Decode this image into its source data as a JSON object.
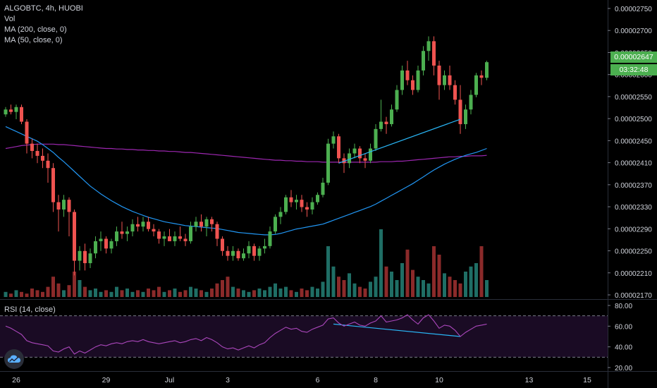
{
  "header": {
    "symbol_line": "ALGOBTC, 4h, HUOBI",
    "vol_label": "Vol",
    "ma200_label": "MA (200, close, 0)",
    "ma50_label": "MA (50, close, 0)"
  },
  "rsi_label": "RSI (14, close)",
  "current_price": "0.00002647",
  "countdown": "03:32:48",
  "colors": {
    "up": "#26a69a",
    "up_bright": "#4caf50",
    "down": "#ef5350",
    "vol_up": "#1f6e65",
    "vol_down": "#8b2a2a",
    "ma50": "#2196f3",
    "ma200": "#9c27b0",
    "rsi_line": "#ab47bc",
    "trendline": "#29b6f6"
  },
  "logo_icon": "tradingview-cloud-icon",
  "chart_data": {
    "type": "candlestick",
    "symbol": "ALGOBTC",
    "interval": "4h",
    "exchange": "HUOBI",
    "x_tick_labels": [
      "26",
      "29",
      "Jul",
      "3",
      "6",
      "8",
      "10",
      "13",
      "15"
    ],
    "price_axis": {
      "tick_labels": [
        "0.00002750",
        "0.00002700",
        "0.00002650",
        "0.00002600",
        "0.00002550",
        "0.00002500",
        "0.00002450",
        "0.00002410",
        "0.00002370",
        "0.00002330",
        "0.00002290",
        "0.00002250",
        "0.00002210",
        "0.00002170"
      ],
      "range": [
        2.17e-05,
        2.76e-05
      ]
    },
    "rsi_axis": {
      "tick_labels": [
        "80.00",
        "60.00",
        "40.00",
        "20.00"
      ],
      "range": [
        20,
        80
      ],
      "levels": [
        70,
        30
      ]
    },
    "candles": [
      [
        2540,
        2555,
        2535,
        2550
      ],
      [
        2550,
        2560,
        2540,
        2545
      ],
      [
        2545,
        2560,
        2530,
        2555
      ],
      [
        2555,
        2560,
        2520,
        2525
      ],
      [
        2525,
        2530,
        2460,
        2480
      ],
      [
        2480,
        2490,
        2450,
        2465
      ],
      [
        2465,
        2480,
        2440,
        2455
      ],
      [
        2455,
        2470,
        2430,
        2445
      ],
      [
        2445,
        2460,
        2400,
        2430
      ],
      [
        2430,
        2440,
        2340,
        2360
      ],
      [
        2360,
        2375,
        2300,
        2345
      ],
      [
        2345,
        2375,
        2330,
        2365
      ],
      [
        2365,
        2370,
        2290,
        2340
      ],
      [
        2340,
        2345,
        2210,
        2240
      ],
      [
        2240,
        2270,
        2220,
        2260
      ],
      [
        2260,
        2275,
        2220,
        2235
      ],
      [
        2235,
        2265,
        2225,
        2255
      ],
      [
        2255,
        2290,
        2245,
        2280
      ],
      [
        2280,
        2300,
        2260,
        2285
      ],
      [
        2285,
        2290,
        2255,
        2265
      ],
      [
        2265,
        2285,
        2255,
        2280
      ],
      [
        2280,
        2310,
        2270,
        2300
      ],
      [
        2300,
        2320,
        2285,
        2295
      ],
      [
        2295,
        2310,
        2280,
        2300
      ],
      [
        2300,
        2325,
        2290,
        2315
      ],
      [
        2315,
        2330,
        2300,
        2310
      ],
      [
        2310,
        2330,
        2300,
        2320
      ],
      [
        2320,
        2330,
        2300,
        2305
      ],
      [
        2305,
        2315,
        2290,
        2300
      ],
      [
        2300,
        2305,
        2275,
        2285
      ],
      [
        2285,
        2300,
        2270,
        2290
      ],
      [
        2290,
        2305,
        2280,
        2280
      ],
      [
        2280,
        2300,
        2270,
        2290
      ],
      [
        2290,
        2310,
        2280,
        2285
      ],
      [
        2285,
        2295,
        2270,
        2280
      ],
      [
        2280,
        2320,
        2275,
        2310
      ],
      [
        2310,
        2330,
        2300,
        2320
      ],
      [
        2320,
        2335,
        2300,
        2310
      ],
      [
        2310,
        2330,
        2290,
        2325
      ],
      [
        2325,
        2330,
        2300,
        2315
      ],
      [
        2315,
        2320,
        2270,
        2285
      ],
      [
        2285,
        2290,
        2250,
        2260
      ],
      [
        2260,
        2270,
        2240,
        2250
      ],
      [
        2250,
        2270,
        2240,
        2260
      ],
      [
        2260,
        2265,
        2240,
        2245
      ],
      [
        2245,
        2265,
        2240,
        2255
      ],
      [
        2255,
        2280,
        2245,
        2270
      ],
      [
        2270,
        2275,
        2240,
        2250
      ],
      [
        2250,
        2270,
        2240,
        2265
      ],
      [
        2265,
        2285,
        2255,
        2270
      ],
      [
        2270,
        2310,
        2265,
        2300
      ],
      [
        2300,
        2335,
        2295,
        2330
      ],
      [
        2330,
        2350,
        2315,
        2340
      ],
      [
        2340,
        2375,
        2335,
        2370
      ],
      [
        2370,
        2385,
        2350,
        2360
      ],
      [
        2360,
        2375,
        2345,
        2365
      ],
      [
        2365,
        2375,
        2340,
        2350
      ],
      [
        2350,
        2360,
        2330,
        2345
      ],
      [
        2345,
        2370,
        2335,
        2360
      ],
      [
        2360,
        2380,
        2355,
        2375
      ],
      [
        2375,
        2410,
        2370,
        2400
      ],
      [
        2400,
        2490,
        2395,
        2480
      ],
      [
        2480,
        2505,
        2470,
        2495
      ],
      [
        2495,
        2500,
        2440,
        2450
      ],
      [
        2450,
        2460,
        2420,
        2440
      ],
      [
        2440,
        2470,
        2430,
        2460
      ],
      [
        2460,
        2480,
        2450,
        2470
      ],
      [
        2470,
        2475,
        2440,
        2450
      ],
      [
        2450,
        2460,
        2430,
        2445
      ],
      [
        2445,
        2480,
        2440,
        2470
      ],
      [
        2470,
        2520,
        2465,
        2510
      ],
      [
        2510,
        2570,
        2505,
        2525
      ],
      [
        2525,
        2535,
        2500,
        2520
      ],
      [
        2520,
        2560,
        2515,
        2550
      ],
      [
        2550,
        2600,
        2545,
        2590
      ],
      [
        2590,
        2640,
        2580,
        2630
      ],
      [
        2630,
        2650,
        2600,
        2610
      ],
      [
        2610,
        2620,
        2580,
        2590
      ],
      [
        2590,
        2640,
        2585,
        2630
      ],
      [
        2630,
        2680,
        2620,
        2670
      ],
      [
        2670,
        2700,
        2650,
        2690
      ],
      [
        2690,
        2700,
        2620,
        2640
      ],
      [
        2640,
        2650,
        2570,
        2600
      ],
      [
        2600,
        2630,
        2590,
        2620
      ],
      [
        2620,
        2640,
        2590,
        2600
      ],
      [
        2600,
        2610,
        2560,
        2570
      ],
      [
        2570,
        2600,
        2500,
        2520
      ],
      [
        2520,
        2560,
        2510,
        2550
      ],
      [
        2550,
        2590,
        2540,
        2580
      ],
      [
        2580,
        2625,
        2575,
        2620
      ],
      [
        2620,
        2630,
        2600,
        2615
      ],
      [
        2615,
        2650,
        2610,
        2647
      ]
    ],
    "volume": [
      3,
      2,
      4,
      3,
      2,
      5,
      4,
      3,
      6,
      12,
      8,
      4,
      7,
      15,
      10,
      6,
      4,
      5,
      3,
      4,
      3,
      6,
      4,
      5,
      3,
      4,
      3,
      5,
      4,
      6,
      3,
      4,
      5,
      3,
      4,
      6,
      5,
      4,
      3,
      5,
      8,
      10,
      12,
      6,
      5,
      4,
      3,
      4,
      5,
      4,
      6,
      8,
      5,
      6,
      4,
      3,
      5,
      4,
      6,
      5,
      9,
      30,
      18,
      12,
      10,
      14,
      8,
      6,
      5,
      9,
      12,
      40,
      18,
      15,
      10,
      20,
      28,
      16,
      12,
      10,
      8,
      30,
      25,
      14,
      12,
      10,
      8,
      15,
      18,
      20,
      30,
      10
    ],
    "rsi": [
      60,
      58,
      55,
      52,
      46,
      44,
      43,
      42,
      41,
      36,
      35,
      38,
      40,
      33,
      36,
      34,
      37,
      40,
      42,
      41,
      43,
      44,
      43,
      45,
      46,
      45,
      47,
      45,
      44,
      43,
      44,
      45,
      46,
      44,
      45,
      47,
      48,
      46,
      49,
      47,
      44,
      40,
      38,
      39,
      37,
      39,
      41,
      39,
      42,
      44,
      49,
      53,
      56,
      59,
      57,
      58,
      55,
      54,
      57,
      59,
      61,
      67,
      68,
      63,
      60,
      62,
      64,
      61,
      60,
      63,
      65,
      70,
      64,
      65,
      66,
      68,
      71,
      66,
      62,
      68,
      71,
      65,
      58,
      61,
      60,
      56,
      50,
      54,
      57,
      60,
      61,
      62
    ],
    "ma50": [
      2515,
      2510,
      2505,
      2500,
      2495,
      2490,
      2485,
      2478,
      2470,
      2462,
      2452,
      2443,
      2433,
      2423,
      2413,
      2403,
      2393,
      2385,
      2377,
      2370,
      2363,
      2357,
      2351,
      2346,
      2341,
      2337,
      2333,
      2329,
      2326,
      2323,
      2320,
      2318,
      2316,
      2314,
      2312,
      2311,
      2310,
      2309,
      2308,
      2307,
      2306,
      2304,
      2302,
      2300,
      2298,
      2297,
      2296,
      2295,
      2294,
      2293,
      2293,
      2294,
      2296,
      2299,
      2302,
      2305,
      2307,
      2309,
      2311,
      2313,
      2315,
      2319,
      2323,
      2327,
      2331,
      2335,
      2339,
      2343,
      2347,
      2351,
      2356,
      2362,
      2368,
      2374,
      2380,
      2386,
      2392,
      2398,
      2405,
      2412,
      2419,
      2426,
      2432,
      2438,
      2443,
      2448,
      2452,
      2456,
      2459,
      2462,
      2466,
      2470
    ],
    "ma200": [
      2470,
      2472,
      2474,
      2476,
      2477,
      2478,
      2479,
      2479,
      2479,
      2479,
      2478,
      2478,
      2477,
      2476,
      2475,
      2474,
      2473,
      2472,
      2471,
      2470,
      2470,
      2469,
      2469,
      2468,
      2468,
      2467,
      2467,
      2466,
      2466,
      2465,
      2465,
      2464,
      2464,
      2463,
      2462,
      2462,
      2461,
      2460,
      2459,
      2458,
      2457,
      2456,
      2455,
      2454,
      2453,
      2452,
      2451,
      2450,
      2449,
      2448,
      2447,
      2446,
      2446,
      2445,
      2445,
      2444,
      2444,
      2443,
      2443,
      2443,
      2442,
      2442,
      2442,
      2442,
      2442,
      2442,
      2442,
      2442,
      2442,
      2442,
      2442,
      2443,
      2443,
      2443,
      2444,
      2444,
      2445,
      2446,
      2447,
      2448,
      2449,
      2450,
      2451,
      2452,
      2453,
      2453,
      2454,
      2454,
      2455,
      2455,
      2455,
      2456
    ],
    "trendlines": [
      {
        "pane": "price",
        "from": {
          "index": 63,
          "value": 2440
        },
        "to": {
          "index": 86,
          "value": 2530
        }
      },
      {
        "pane": "rsi",
        "from": {
          "index": 62,
          "value": 62
        },
        "to": {
          "index": 86,
          "value": 50
        }
      }
    ]
  }
}
